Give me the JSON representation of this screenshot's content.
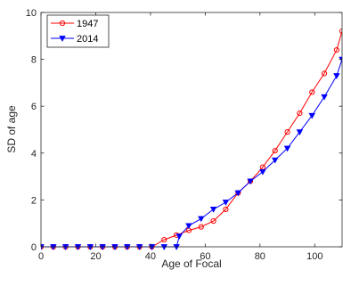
{
  "chart_data": {
    "type": "line",
    "xlabel": "Age of Focal",
    "ylabel": "SD of age",
    "xlim": [
      0,
      110
    ],
    "ylim": [
      0,
      10
    ],
    "xticks": [
      0,
      20,
      40,
      60,
      80,
      100
    ],
    "yticks": [
      0,
      2,
      4,
      6,
      8,
      10
    ],
    "xtick_labels": [
      "0",
      "20",
      "40",
      "60",
      "80",
      "100"
    ],
    "ytick_labels": [
      "0",
      "2",
      "4",
      "6",
      "8",
      "10"
    ],
    "grid": false,
    "legend_position": "top-left",
    "series": [
      {
        "name": "1947",
        "color": "#ff0000",
        "marker": "circle",
        "x": [
          0,
          4.5,
          9,
          13.5,
          18,
          22.5,
          27,
          31.5,
          36,
          40.5,
          45,
          49.5,
          54,
          58.5,
          63,
          67.5,
          72,
          76.5,
          81,
          85.5,
          90,
          94.5,
          99,
          103.5,
          108,
          110
        ],
        "y": [
          0,
          0,
          0,
          0,
          0,
          0,
          0,
          0,
          0,
          0,
          0.3,
          0.5,
          0.7,
          0.85,
          1.1,
          1.6,
          2.3,
          2.8,
          3.4,
          4.1,
          4.9,
          5.7,
          6.6,
          7.4,
          8.4,
          9.2
        ]
      },
      {
        "name": "2014",
        "color": "#0000ff",
        "marker": "triangle-down",
        "x": [
          0,
          4.5,
          9,
          13.5,
          18,
          22.5,
          27,
          31.5,
          36,
          40.5,
          45,
          49.5,
          50.5,
          54,
          58.5,
          63,
          67.5,
          72,
          76.5,
          81,
          85.5,
          90,
          94.5,
          99,
          103.5,
          108,
          110
        ],
        "y": [
          0,
          0,
          0,
          0,
          0,
          0,
          0,
          0,
          0,
          0,
          0,
          0,
          0.45,
          0.9,
          1.2,
          1.6,
          1.9,
          2.3,
          2.8,
          3.2,
          3.7,
          4.2,
          4.9,
          5.6,
          6.4,
          7.3,
          8.0
        ]
      }
    ]
  }
}
